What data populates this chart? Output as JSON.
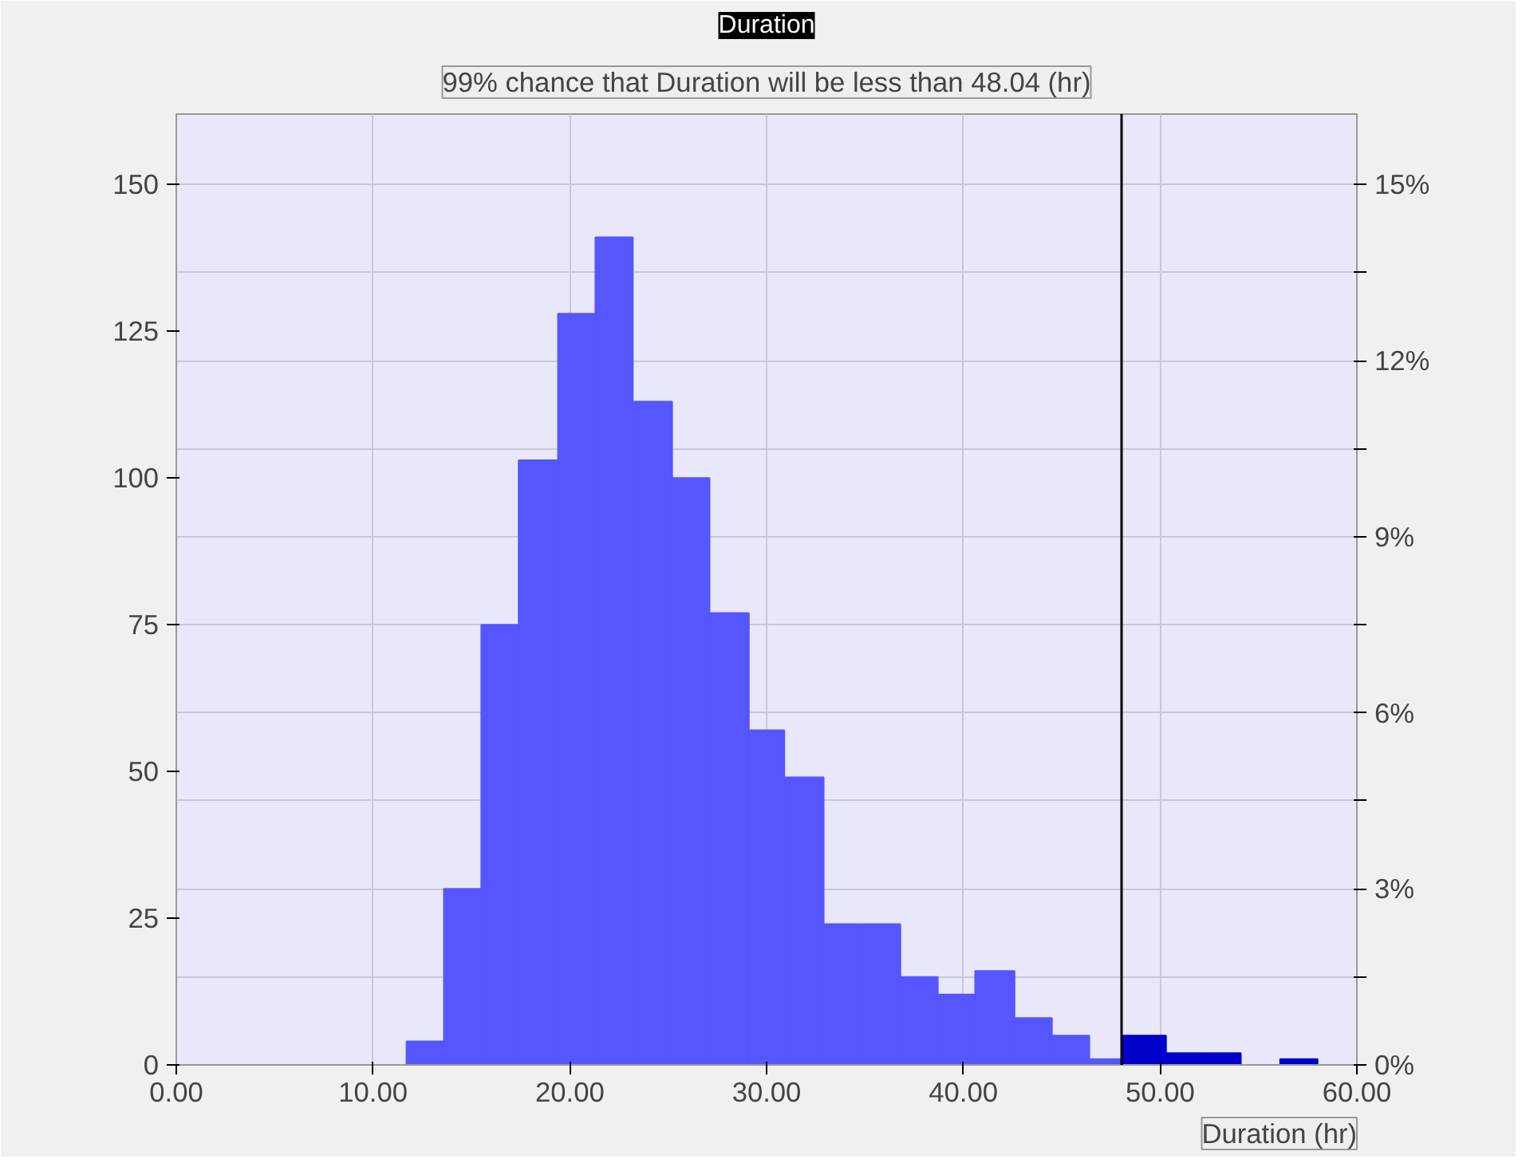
{
  "chart_data": {
    "type": "histogram",
    "title": "Duration",
    "subtitle": "99% chance that Duration will be less than 48.04 (hr)",
    "xlabel": "Duration (hr)",
    "bins": [
      11.7,
      13.6,
      15.5,
      17.4,
      19.4,
      21.3,
      23.2,
      25.2,
      27.1,
      29.1,
      30.9,
      32.9,
      34.8,
      36.8,
      38.7,
      40.6,
      42.6,
      44.5,
      46.4,
      48.1,
      50.3,
      52.2,
      54.1,
      56.1,
      58.0
    ],
    "values": [
      4,
      30,
      75,
      103,
      128,
      141,
      113,
      100,
      77,
      57,
      49,
      24,
      24,
      15,
      12,
      16,
      8,
      5,
      1,
      5,
      2,
      2,
      0,
      1
    ],
    "colors": [
      "#5656ff",
      "#5656ff",
      "#5656ff",
      "#5656ff",
      "#5656ff",
      "#5656ff",
      "#5656ff",
      "#5656ff",
      "#5656ff",
      "#5656ff",
      "#5656ff",
      "#5656ff",
      "#5656ff",
      "#5656ff",
      "#5656ff",
      "#5656ff",
      "#5656ff",
      "#5656ff",
      "#5656ff",
      "#0000c8",
      "#0000c8",
      "#0000c8",
      "#0000c8",
      "#0000c8"
    ],
    "xlim": [
      0,
      60
    ],
    "xticks": [
      {
        "value": 0,
        "label": "0.00"
      },
      {
        "value": 10,
        "label": "10.00"
      },
      {
        "value": 20,
        "label": "20.00"
      },
      {
        "value": 30,
        "label": "30.00"
      },
      {
        "value": 40,
        "label": "40.00"
      },
      {
        "value": 50,
        "label": "50.00"
      },
      {
        "value": 60,
        "label": "60.00"
      }
    ],
    "ylim": [
      0,
      162
    ],
    "yticks": [
      0,
      25,
      50,
      75,
      100,
      125,
      150
    ],
    "y2lim": [
      0,
      16.2
    ],
    "y2ticks": [
      {
        "value": 0,
        "label": "0%"
      },
      {
        "value": 1.5,
        "label": null
      },
      {
        "value": 3,
        "label": "3%"
      },
      {
        "value": 4.5,
        "label": null
      },
      {
        "value": 6,
        "label": "6%"
      },
      {
        "value": 7.5,
        "label": null
      },
      {
        "value": 9,
        "label": "9%"
      },
      {
        "value": 10.5,
        "label": null
      },
      {
        "value": 12,
        "label": "12%"
      },
      {
        "value": 13.5,
        "label": null
      },
      {
        "value": 15,
        "label": "15%"
      }
    ],
    "ref_lines": [
      {
        "axis": "x",
        "value": 48.04,
        "color": "#000000"
      }
    ],
    "grid": true
  }
}
